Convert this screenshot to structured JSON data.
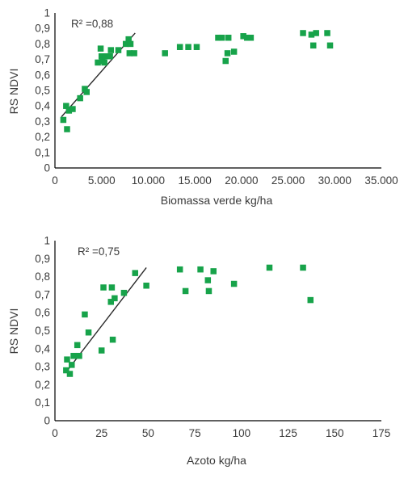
{
  "colors": {
    "marker": "#17a34a",
    "axis": "#000000",
    "text": "#3a3a3a"
  },
  "chart_data": [
    {
      "type": "scatter",
      "xlabel": "Biomassa verde kg/ha",
      "ylabel": "RS NDVI",
      "xlim": [
        0,
        35000
      ],
      "ylim": [
        0,
        1
      ],
      "x_ticks": [
        "0",
        "5.000",
        "10.000",
        "15.000",
        "20.000",
        "25.000",
        "30.000",
        "35.000"
      ],
      "y_ticks": [
        "0",
        "0,1",
        "0,2",
        "0,3",
        "0,4",
        "0,5",
        "0,6",
        "0,7",
        "0,8",
        "0,9",
        "1"
      ],
      "annotation": "R² =0,88",
      "trendline": {
        "x": [
          700,
          8600
        ],
        "y": [
          0.33,
          0.87
        ]
      },
      "points": [
        {
          "x": 900,
          "y": 0.31
        },
        {
          "x": 1200,
          "y": 0.4
        },
        {
          "x": 1300,
          "y": 0.25
        },
        {
          "x": 1500,
          "y": 0.37
        },
        {
          "x": 1900,
          "y": 0.38
        },
        {
          "x": 2700,
          "y": 0.45
        },
        {
          "x": 3200,
          "y": 0.51
        },
        {
          "x": 3400,
          "y": 0.49
        },
        {
          "x": 4600,
          "y": 0.68
        },
        {
          "x": 4900,
          "y": 0.77
        },
        {
          "x": 5000,
          "y": 0.72
        },
        {
          "x": 5100,
          "y": 0.69
        },
        {
          "x": 5300,
          "y": 0.68
        },
        {
          "x": 5400,
          "y": 0.72
        },
        {
          "x": 5900,
          "y": 0.72
        },
        {
          "x": 6000,
          "y": 0.76
        },
        {
          "x": 6800,
          "y": 0.76
        },
        {
          "x": 7600,
          "y": 0.8
        },
        {
          "x": 7900,
          "y": 0.83
        },
        {
          "x": 8000,
          "y": 0.74
        },
        {
          "x": 8100,
          "y": 0.8
        },
        {
          "x": 8500,
          "y": 0.74
        },
        {
          "x": 11800,
          "y": 0.74
        },
        {
          "x": 13400,
          "y": 0.78
        },
        {
          "x": 14300,
          "y": 0.78
        },
        {
          "x": 15200,
          "y": 0.78
        },
        {
          "x": 17500,
          "y": 0.84
        },
        {
          "x": 17900,
          "y": 0.84
        },
        {
          "x": 18300,
          "y": 0.69
        },
        {
          "x": 18500,
          "y": 0.74
        },
        {
          "x": 18600,
          "y": 0.84
        },
        {
          "x": 19200,
          "y": 0.75
        },
        {
          "x": 20200,
          "y": 0.85
        },
        {
          "x": 20600,
          "y": 0.84
        },
        {
          "x": 21000,
          "y": 0.84
        },
        {
          "x": 26600,
          "y": 0.87
        },
        {
          "x": 27500,
          "y": 0.86
        },
        {
          "x": 27700,
          "y": 0.79
        },
        {
          "x": 28000,
          "y": 0.87
        },
        {
          "x": 29200,
          "y": 0.87
        },
        {
          "x": 29500,
          "y": 0.79
        }
      ]
    },
    {
      "type": "scatter",
      "xlabel": "Azoto kg/ha",
      "ylabel": "RS NDVI",
      "xlim": [
        0,
        175
      ],
      "ylim": [
        0,
        1
      ],
      "x_ticks": [
        "0",
        "25",
        "50",
        "75",
        "100",
        "125",
        "150",
        "175"
      ],
      "y_ticks": [
        "0",
        "0,1",
        "0,2",
        "0,3",
        "0,4",
        "0,5",
        "0,6",
        "0,7",
        "0,8",
        "0,9",
        "1"
      ],
      "annotation": "R² =0,75",
      "trendline": {
        "x": [
          6,
          49
        ],
        "y": [
          0.27,
          0.85
        ]
      },
      "points": [
        {
          "x": 6,
          "y": 0.28
        },
        {
          "x": 6.5,
          "y": 0.34
        },
        {
          "x": 8,
          "y": 0.26
        },
        {
          "x": 9,
          "y": 0.31
        },
        {
          "x": 10,
          "y": 0.36
        },
        {
          "x": 12,
          "y": 0.42
        },
        {
          "x": 13,
          "y": 0.36
        },
        {
          "x": 16,
          "y": 0.59
        },
        {
          "x": 18,
          "y": 0.49
        },
        {
          "x": 25,
          "y": 0.39
        },
        {
          "x": 26,
          "y": 0.74
        },
        {
          "x": 30,
          "y": 0.66
        },
        {
          "x": 30.5,
          "y": 0.74
        },
        {
          "x": 31,
          "y": 0.45
        },
        {
          "x": 32,
          "y": 0.68
        },
        {
          "x": 37,
          "y": 0.71
        },
        {
          "x": 43,
          "y": 0.82
        },
        {
          "x": 49,
          "y": 0.75
        },
        {
          "x": 67,
          "y": 0.84
        },
        {
          "x": 70,
          "y": 0.72
        },
        {
          "x": 78,
          "y": 0.84
        },
        {
          "x": 82,
          "y": 0.78
        },
        {
          "x": 82.5,
          "y": 0.72
        },
        {
          "x": 85,
          "y": 0.83
        },
        {
          "x": 96,
          "y": 0.76
        },
        {
          "x": 115,
          "y": 0.85
        },
        {
          "x": 133,
          "y": 0.85
        },
        {
          "x": 137,
          "y": 0.67
        }
      ]
    }
  ]
}
